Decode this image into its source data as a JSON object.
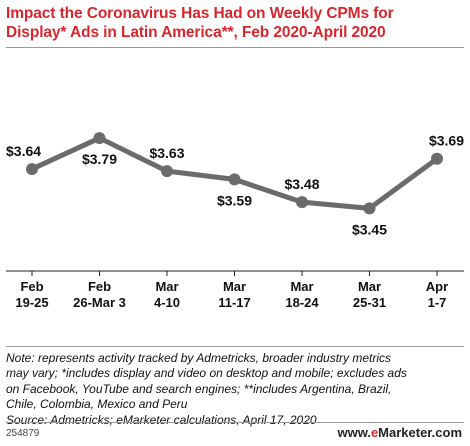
{
  "title": {
    "line1": "Impact the Coronavirus Has Had on Weekly CPMs for",
    "line2": "Display* Ads in Latin America**, Feb 2020-April 2020"
  },
  "chart_data": {
    "type": "line",
    "title": "Impact the Coronavirus Has Had on Weekly CPMs for Display* Ads in Latin America**, Feb 2020-April 2020",
    "categories": [
      [
        "Feb",
        "19-25"
      ],
      [
        "Feb",
        "26-Mar 3"
      ],
      [
        "Mar",
        "4-10"
      ],
      [
        "Mar",
        "11-17"
      ],
      [
        "Mar",
        "18-24"
      ],
      [
        "Mar",
        "25-31"
      ],
      [
        "Apr",
        "1-7"
      ]
    ],
    "series": [
      {
        "values": [
          3.64,
          3.79,
          3.63,
          3.59,
          3.48,
          3.45,
          3.69
        ],
        "labels": [
          "$3.64",
          "$3.79",
          "$3.63",
          "$3.59",
          "$3.48",
          "$3.45",
          "$3.69"
        ],
        "label_positions": [
          "above",
          "below",
          "above",
          "below",
          "above",
          "below",
          "above"
        ]
      }
    ],
    "ylim": [
      3.2,
      3.95
    ],
    "grid": false,
    "line_color": "#6b6b6b"
  },
  "note": {
    "lines": [
      "Note: represents activity tracked by Admetricks, broader industry metrics",
      "may vary; *includes display and video on desktop and mobile; excludes ads",
      "on Facebook, YouTube and search engines; **includes Argentina, Brazil,",
      "Chile, Colombia, Mexico and Peru",
      "Source: Admetricks; eMarketer calculations, April 17, 2020"
    ]
  },
  "footer": {
    "chart_id": "254879",
    "brand_prefix": "www.",
    "brand_e": "e",
    "brand_rest": "Marketer",
    "brand_suffix": ".com"
  }
}
